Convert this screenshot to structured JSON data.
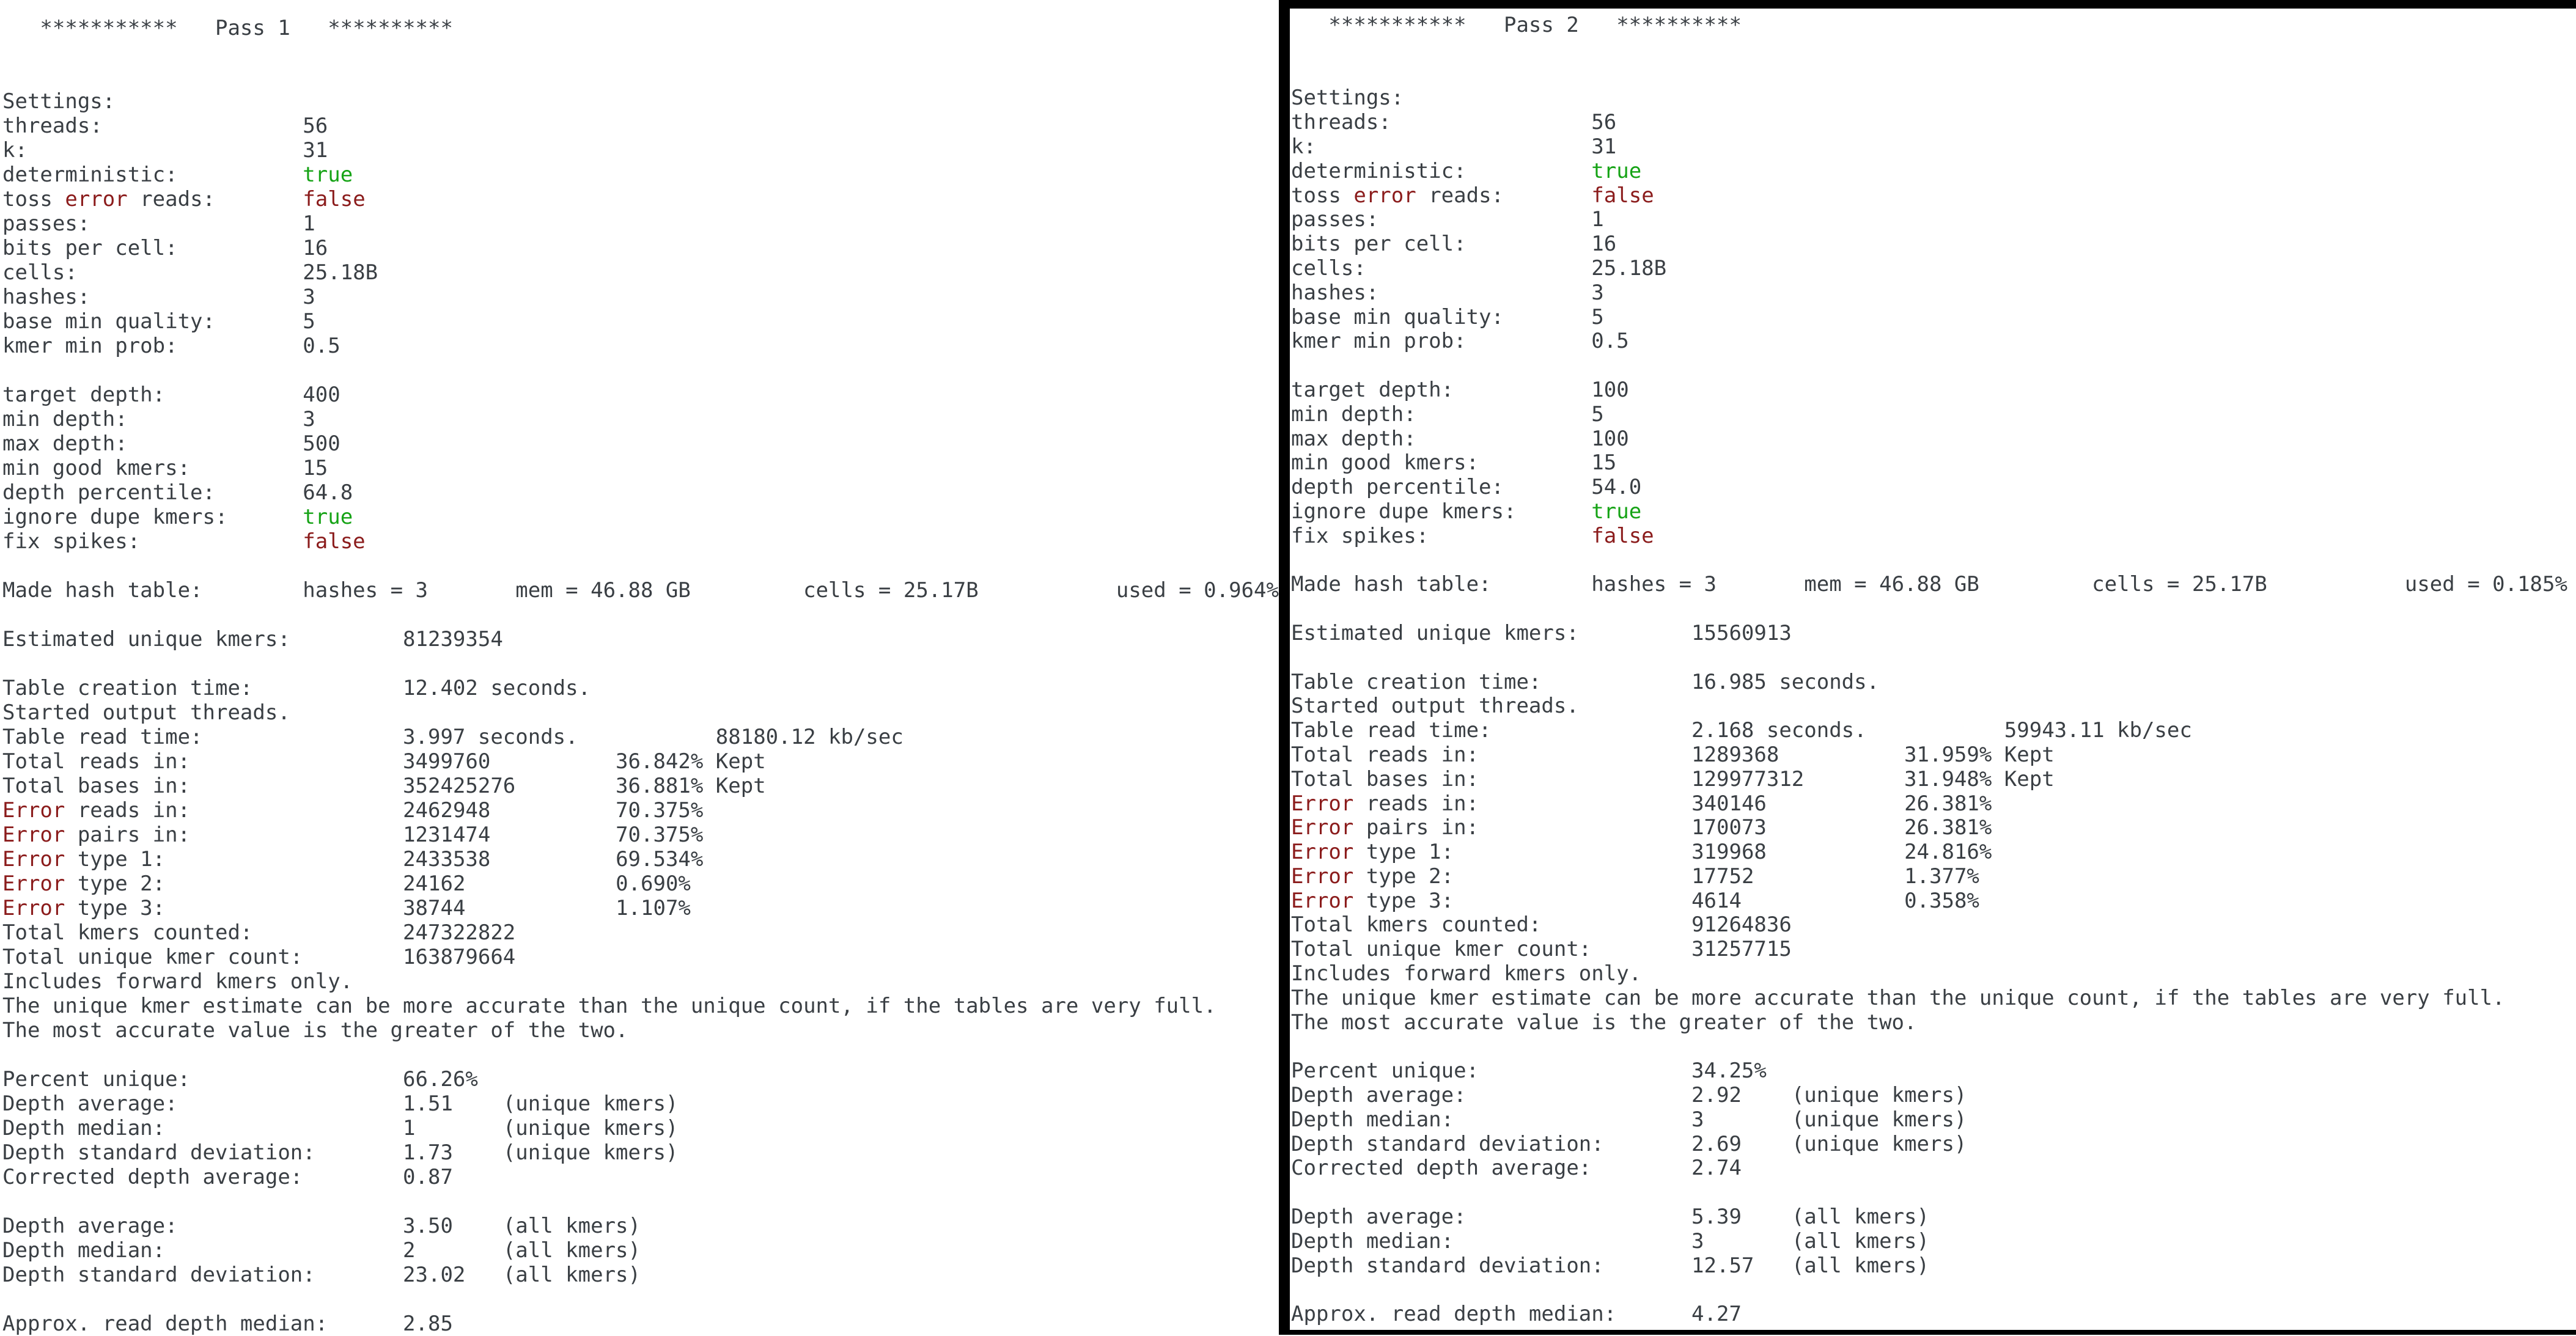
{
  "colors": {
    "background": "#ffffff",
    "foreground": "#3a3f44",
    "error_text": "#8b1c1c",
    "success_text": "#16a316",
    "pane_border": "#000000"
  },
  "panels": [
    {
      "id": "pass1",
      "title": "Pass 1",
      "lines": [
        [
          [
            0,
            "   ***********   Pass 1   **********"
          ]
        ],
        [],
        [],
        [
          [
            0,
            "Settings:"
          ]
        ],
        [
          [
            0,
            "threads:"
          ],
          [
            24,
            "56"
          ]
        ],
        [
          [
            0,
            "k:"
          ],
          [
            24,
            "31"
          ]
        ],
        [
          [
            0,
            "deterministic:"
          ],
          [
            24,
            "true",
            "ok"
          ]
        ],
        [
          [
            0,
            "toss "
          ],
          [
            5,
            "error",
            "err"
          ],
          [
            10,
            " reads:"
          ],
          [
            24,
            "false",
            "err"
          ]
        ],
        [
          [
            0,
            "passes:"
          ],
          [
            24,
            "1"
          ]
        ],
        [
          [
            0,
            "bits per cell:"
          ],
          [
            24,
            "16"
          ]
        ],
        [
          [
            0,
            "cells:"
          ],
          [
            24,
            "25.18B"
          ]
        ],
        [
          [
            0,
            "hashes:"
          ],
          [
            24,
            "3"
          ]
        ],
        [
          [
            0,
            "base min quality:"
          ],
          [
            24,
            "5"
          ]
        ],
        [
          [
            0,
            "kmer min prob:"
          ],
          [
            24,
            "0.5"
          ]
        ],
        [],
        [
          [
            0,
            "target depth:"
          ],
          [
            24,
            "400"
          ]
        ],
        [
          [
            0,
            "min depth:"
          ],
          [
            24,
            "3"
          ]
        ],
        [
          [
            0,
            "max depth:"
          ],
          [
            24,
            "500"
          ]
        ],
        [
          [
            0,
            "min good kmers:"
          ],
          [
            24,
            "15"
          ]
        ],
        [
          [
            0,
            "depth percentile:"
          ],
          [
            24,
            "64.8"
          ]
        ],
        [
          [
            0,
            "ignore dupe kmers:"
          ],
          [
            24,
            "true",
            "ok"
          ]
        ],
        [
          [
            0,
            "fix spikes:"
          ],
          [
            24,
            "false",
            "err"
          ]
        ],
        [],
        [
          [
            0,
            "Made hash table:"
          ],
          [
            24,
            "hashes = 3"
          ],
          [
            41,
            "mem = 46.88 GB"
          ],
          [
            64,
            "cells = 25.17B"
          ],
          [
            89,
            "used = 0.964%"
          ]
        ],
        [],
        [
          [
            0,
            "Estimated unique kmers:"
          ],
          [
            32,
            "81239354"
          ]
        ],
        [],
        [
          [
            0,
            "Table creation time:"
          ],
          [
            32,
            "12.402 seconds."
          ]
        ],
        [
          [
            0,
            "Started output threads."
          ]
        ],
        [
          [
            0,
            "Table read time:"
          ],
          [
            32,
            "3.997 seconds."
          ],
          [
            57,
            "88180.12 kb/sec"
          ]
        ],
        [
          [
            0,
            "Total reads in:"
          ],
          [
            32,
            "3499760"
          ],
          [
            49,
            "36.842% Kept"
          ]
        ],
        [
          [
            0,
            "Total bases in:"
          ],
          [
            32,
            "352425276"
          ],
          [
            49,
            "36.881% Kept"
          ]
        ],
        [
          [
            0,
            "Error",
            "err"
          ],
          [
            5,
            " reads in:"
          ],
          [
            32,
            "2462948"
          ],
          [
            49,
            "70.375%"
          ]
        ],
        [
          [
            0,
            "Error",
            "err"
          ],
          [
            5,
            " pairs in:"
          ],
          [
            32,
            "1231474"
          ],
          [
            49,
            "70.375%"
          ]
        ],
        [
          [
            0,
            "Error",
            "err"
          ],
          [
            5,
            " type 1:"
          ],
          [
            32,
            "2433538"
          ],
          [
            49,
            "69.534%"
          ]
        ],
        [
          [
            0,
            "Error",
            "err"
          ],
          [
            5,
            " type 2:"
          ],
          [
            32,
            "24162"
          ],
          [
            49,
            "0.690%"
          ]
        ],
        [
          [
            0,
            "Error",
            "err"
          ],
          [
            5,
            " type 3:"
          ],
          [
            32,
            "38744"
          ],
          [
            49,
            "1.107%"
          ]
        ],
        [
          [
            0,
            "Total kmers counted:"
          ],
          [
            32,
            "247322822"
          ]
        ],
        [
          [
            0,
            "Total unique kmer count:"
          ],
          [
            32,
            "163879664"
          ]
        ],
        [
          [
            0,
            "Includes forward kmers only."
          ]
        ],
        [
          [
            0,
            "The unique kmer estimate can be more accurate than the unique count, if the tables are very full."
          ]
        ],
        [
          [
            0,
            "The most accurate value is the greater of the two."
          ]
        ],
        [],
        [
          [
            0,
            "Percent unique:"
          ],
          [
            32,
            "66.26%"
          ]
        ],
        [
          [
            0,
            "Depth average:"
          ],
          [
            32,
            "1.51"
          ],
          [
            40,
            "(unique kmers)"
          ]
        ],
        [
          [
            0,
            "Depth median:"
          ],
          [
            32,
            "1"
          ],
          [
            40,
            "(unique kmers)"
          ]
        ],
        [
          [
            0,
            "Depth standard deviation:"
          ],
          [
            32,
            "1.73"
          ],
          [
            40,
            "(unique kmers)"
          ]
        ],
        [
          [
            0,
            "Corrected depth average:"
          ],
          [
            32,
            "0.87"
          ]
        ],
        [],
        [
          [
            0,
            "Depth average:"
          ],
          [
            32,
            "3.50"
          ],
          [
            40,
            "(all kmers)"
          ]
        ],
        [
          [
            0,
            "Depth median:"
          ],
          [
            32,
            "2"
          ],
          [
            40,
            "(all kmers)"
          ]
        ],
        [
          [
            0,
            "Depth standard deviation:"
          ],
          [
            32,
            "23.02"
          ],
          [
            40,
            "(all kmers)"
          ]
        ],
        [],
        [
          [
            0,
            "Approx. read depth median:"
          ],
          [
            32,
            "2.85"
          ]
        ]
      ]
    },
    {
      "id": "pass2",
      "title": "Pass 2",
      "lines": [
        [
          [
            0,
            "   ***********   Pass 2   **********"
          ]
        ],
        [],
        [],
        [
          [
            0,
            "Settings:"
          ]
        ],
        [
          [
            0,
            "threads:"
          ],
          [
            24,
            "56"
          ]
        ],
        [
          [
            0,
            "k:"
          ],
          [
            24,
            "31"
          ]
        ],
        [
          [
            0,
            "deterministic:"
          ],
          [
            24,
            "true",
            "ok"
          ]
        ],
        [
          [
            0,
            "toss "
          ],
          [
            5,
            "error",
            "err"
          ],
          [
            10,
            " reads:"
          ],
          [
            24,
            "false",
            "err"
          ]
        ],
        [
          [
            0,
            "passes:"
          ],
          [
            24,
            "1"
          ]
        ],
        [
          [
            0,
            "bits per cell:"
          ],
          [
            24,
            "16"
          ]
        ],
        [
          [
            0,
            "cells:"
          ],
          [
            24,
            "25.18B"
          ]
        ],
        [
          [
            0,
            "hashes:"
          ],
          [
            24,
            "3"
          ]
        ],
        [
          [
            0,
            "base min quality:"
          ],
          [
            24,
            "5"
          ]
        ],
        [
          [
            0,
            "kmer min prob:"
          ],
          [
            24,
            "0.5"
          ]
        ],
        [],
        [
          [
            0,
            "target depth:"
          ],
          [
            24,
            "100"
          ]
        ],
        [
          [
            0,
            "min depth:"
          ],
          [
            24,
            "5"
          ]
        ],
        [
          [
            0,
            "max depth:"
          ],
          [
            24,
            "100"
          ]
        ],
        [
          [
            0,
            "min good kmers:"
          ],
          [
            24,
            "15"
          ]
        ],
        [
          [
            0,
            "depth percentile:"
          ],
          [
            24,
            "54.0"
          ]
        ],
        [
          [
            0,
            "ignore dupe kmers:"
          ],
          [
            24,
            "true",
            "ok"
          ]
        ],
        [
          [
            0,
            "fix spikes:"
          ],
          [
            24,
            "false",
            "err"
          ]
        ],
        [],
        [
          [
            0,
            "Made hash table:"
          ],
          [
            24,
            "hashes = 3"
          ],
          [
            41,
            "mem = 46.88 GB"
          ],
          [
            64,
            "cells = 25.17B"
          ],
          [
            89,
            "used = 0.185%"
          ]
        ],
        [],
        [
          [
            0,
            "Estimated unique kmers:"
          ],
          [
            32,
            "15560913"
          ]
        ],
        [],
        [
          [
            0,
            "Table creation time:"
          ],
          [
            32,
            "16.985 seconds."
          ]
        ],
        [
          [
            0,
            "Started output threads."
          ]
        ],
        [
          [
            0,
            "Table read time:"
          ],
          [
            32,
            "2.168 seconds."
          ],
          [
            57,
            "59943.11 kb/sec"
          ]
        ],
        [
          [
            0,
            "Total reads in:"
          ],
          [
            32,
            "1289368"
          ],
          [
            49,
            "31.959% Kept"
          ]
        ],
        [
          [
            0,
            "Total bases in:"
          ],
          [
            32,
            "129977312"
          ],
          [
            49,
            "31.948% Kept"
          ]
        ],
        [
          [
            0,
            "Error",
            "err"
          ],
          [
            5,
            " reads in:"
          ],
          [
            32,
            "340146"
          ],
          [
            49,
            "26.381%"
          ]
        ],
        [
          [
            0,
            "Error",
            "err"
          ],
          [
            5,
            " pairs in:"
          ],
          [
            32,
            "170073"
          ],
          [
            49,
            "26.381%"
          ]
        ],
        [
          [
            0,
            "Error",
            "err"
          ],
          [
            5,
            " type 1:"
          ],
          [
            32,
            "319968"
          ],
          [
            49,
            "24.816%"
          ]
        ],
        [
          [
            0,
            "Error",
            "err"
          ],
          [
            5,
            " type 2:"
          ],
          [
            32,
            "17752"
          ],
          [
            49,
            "1.377%"
          ]
        ],
        [
          [
            0,
            "Error",
            "err"
          ],
          [
            5,
            " type 3:"
          ],
          [
            32,
            "4614"
          ],
          [
            49,
            "0.358%"
          ]
        ],
        [
          [
            0,
            "Total kmers counted:"
          ],
          [
            32,
            "91264836"
          ]
        ],
        [
          [
            0,
            "Total unique kmer count:"
          ],
          [
            32,
            "31257715"
          ]
        ],
        [
          [
            0,
            "Includes forward kmers only."
          ]
        ],
        [
          [
            0,
            "The unique kmer estimate can be more accurate than the unique count, if the tables are very full."
          ]
        ],
        [
          [
            0,
            "The most accurate value is the greater of the two."
          ]
        ],
        [],
        [
          [
            0,
            "Percent unique:"
          ],
          [
            32,
            "34.25%"
          ]
        ],
        [
          [
            0,
            "Depth average:"
          ],
          [
            32,
            "2.92"
          ],
          [
            40,
            "(unique kmers)"
          ]
        ],
        [
          [
            0,
            "Depth median:"
          ],
          [
            32,
            "3"
          ],
          [
            40,
            "(unique kmers)"
          ]
        ],
        [
          [
            0,
            "Depth standard deviation:"
          ],
          [
            32,
            "2.69"
          ],
          [
            40,
            "(unique kmers)"
          ]
        ],
        [
          [
            0,
            "Corrected depth average:"
          ],
          [
            32,
            "2.74"
          ]
        ],
        [],
        [
          [
            0,
            "Depth average:"
          ],
          [
            32,
            "5.39"
          ],
          [
            40,
            "(all kmers)"
          ]
        ],
        [
          [
            0,
            "Depth median:"
          ],
          [
            32,
            "3"
          ],
          [
            40,
            "(all kmers)"
          ]
        ],
        [
          [
            0,
            "Depth standard deviation:"
          ],
          [
            32,
            "12.57"
          ],
          [
            40,
            "(all kmers)"
          ]
        ],
        [],
        [
          [
            0,
            "Approx. read depth median:"
          ],
          [
            32,
            "4.27"
          ]
        ]
      ]
    }
  ]
}
